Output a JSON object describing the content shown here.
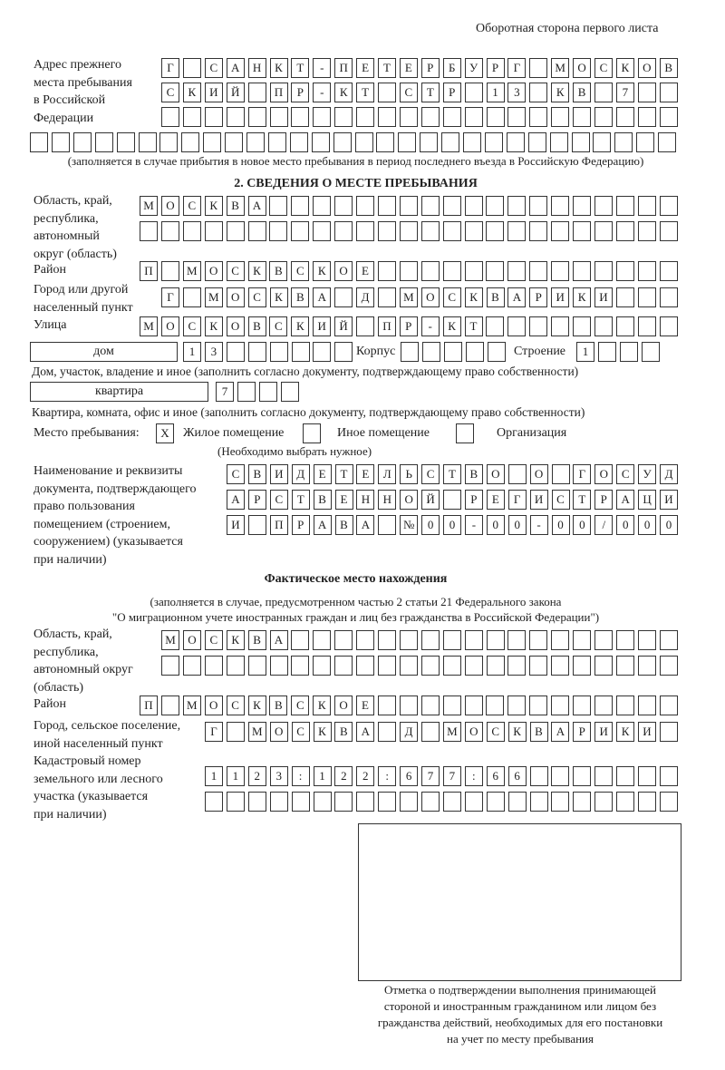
{
  "header": "Оборотная сторона первого листа",
  "prev_address": {
    "label": "Адрес прежнего\nместа пребывания\nв Российской\nФедерации",
    "rows": [
      [
        "Г",
        "",
        "С",
        "А",
        "Н",
        "К",
        "Т",
        "-",
        "П",
        "Е",
        "Т",
        "Е",
        "Р",
        "Б",
        "У",
        "Р",
        "Г",
        "",
        "М",
        "О",
        "С",
        "К",
        "О",
        "В"
      ],
      [
        "С",
        "К",
        "И",
        "Й",
        "",
        "П",
        "Р",
        "-",
        "К",
        "Т",
        "",
        "С",
        "Т",
        "Р",
        "",
        "1",
        "3",
        "",
        "К",
        "В",
        "",
        "7",
        "",
        ""
      ],
      [
        "",
        "",
        "",
        "",
        "",
        "",
        "",
        "",
        "",
        "",
        "",
        "",
        "",
        "",
        "",
        "",
        "",
        "",
        "",
        "",
        "",
        "",
        "",
        ""
      ],
      [
        "",
        "",
        "",
        "",
        "",
        "",
        "",
        "",
        "",
        "",
        "",
        "",
        "",
        "",
        "",
        "",
        "",
        "",
        "",
        "",
        "",
        "",
        "",
        "",
        "",
        "",
        "",
        "",
        "",
        ""
      ]
    ],
    "note": "(заполняется в случае прибытия в новое место пребывания в период последнего въезда в Российскую Федерацию)"
  },
  "section2": {
    "title": "2. СВЕДЕНИЯ О МЕСТЕ ПРЕБЫВАНИЯ",
    "region_label": "Область, край,\nреспублика,\nавтономный\nокруг (область)",
    "region_rows": [
      [
        "М",
        "О",
        "С",
        "К",
        "В",
        "А",
        "",
        "",
        "",
        "",
        "",
        "",
        "",
        "",
        "",
        "",
        "",
        "",
        "",
        "",
        "",
        "",
        "",
        "",
        ""
      ],
      [
        "",
        "",
        "",
        "",
        "",
        "",
        "",
        "",
        "",
        "",
        "",
        "",
        "",
        "",
        "",
        "",
        "",
        "",
        "",
        "",
        "",
        "",
        "",
        "",
        ""
      ]
    ],
    "district_label": "Район",
    "district": [
      "П",
      "",
      "М",
      "О",
      "С",
      "К",
      "В",
      "С",
      "К",
      "О",
      "Е",
      "",
      "",
      "",
      "",
      "",
      "",
      "",
      "",
      "",
      "",
      "",
      "",
      "",
      ""
    ],
    "city_label": "Город или другой\nнаселенный пункт",
    "city": [
      "Г",
      "",
      "М",
      "О",
      "С",
      "К",
      "В",
      "А",
      "",
      "Д",
      "",
      "М",
      "О",
      "С",
      "К",
      "В",
      "А",
      "Р",
      "И",
      "К",
      "И",
      "",
      "",
      ""
    ],
    "street_label": "Улица",
    "street": [
      "М",
      "О",
      "С",
      "К",
      "О",
      "В",
      "С",
      "К",
      "И",
      "Й",
      "",
      "П",
      "Р",
      "-",
      "К",
      "Т",
      "",
      "",
      "",
      "",
      "",
      "",
      "",
      "",
      ""
    ],
    "house_type": "дом",
    "house": [
      "1",
      "3",
      "",
      "",
      "",
      "",
      "",
      ""
    ],
    "korpus_label": "Корпус",
    "korpus": [
      "",
      "",
      "",
      "",
      ""
    ],
    "building_label": "Строение",
    "building": [
      "1",
      "",
      "",
      ""
    ],
    "house_note": "Дом, участок, владение и иное (заполнить согласно документу, подтверждающему право собственности)",
    "flat_type": "квартира",
    "flat": [
      "7",
      "",
      "",
      ""
    ],
    "flat_note": "Квартира, комната, офис и иное (заполнить согласно документу, подтверждающему право собственности)",
    "stay_label": "Место пребывания:",
    "stay_options": [
      {
        "label": "Жилое помещение",
        "mark": "X"
      },
      {
        "label": "Иное помещение",
        "mark": ""
      },
      {
        "label": "Организация",
        "mark": ""
      }
    ],
    "stay_note": "(Необходимо выбрать нужное)",
    "doc_label": "Наименование и реквизиты\nдокумента, подтверждающего\nправо пользования\nпомещением (строением,\nсооружением) (указывается\nпри наличии)",
    "doc_rows": [
      [
        "С",
        "В",
        "И",
        "Д",
        "Е",
        "Т",
        "Е",
        "Л",
        "Ь",
        "С",
        "Т",
        "В",
        "О",
        "",
        "О",
        "",
        "Г",
        "О",
        "С",
        "У",
        "Д"
      ],
      [
        "А",
        "Р",
        "С",
        "Т",
        "В",
        "Е",
        "Н",
        "Н",
        "О",
        "Й",
        "",
        "Р",
        "Е",
        "Г",
        "И",
        "С",
        "Т",
        "Р",
        "А",
        "Ц",
        "И"
      ],
      [
        "И",
        "",
        "П",
        "Р",
        "А",
        "В",
        "А",
        "",
        "№",
        "0",
        "0",
        "-",
        "0",
        "0",
        "-",
        "0",
        "0",
        "/",
        "0",
        "0",
        "0"
      ]
    ]
  },
  "actual": {
    "title": "Фактическое место нахождения",
    "subtitle1": "(заполняется в случае, предусмотренном частью 2 статьи 21 Федерального закона",
    "subtitle2": "\"О миграционном учете иностранных граждан и лиц без гражданства в Российской Федерации\")",
    "region_label": "Область, край,\nреспублика,\nавтономный округ\n(область)",
    "region_rows": [
      [
        "М",
        "О",
        "С",
        "К",
        "В",
        "А",
        "",
        "",
        "",
        "",
        "",
        "",
        "",
        "",
        "",
        "",
        "",
        "",
        "",
        "",
        "",
        "",
        "",
        ""
      ],
      [
        "",
        "",
        "",
        "",
        "",
        "",
        "",
        "",
        "",
        "",
        "",
        "",
        "",
        "",
        "",
        "",
        "",
        "",
        "",
        "",
        "",
        "",
        "",
        ""
      ]
    ],
    "district_label": "Район",
    "district": [
      "П",
      "",
      "М",
      "О",
      "С",
      "К",
      "В",
      "С",
      "К",
      "О",
      "Е",
      "",
      "",
      "",
      "",
      "",
      "",
      "",
      "",
      "",
      "",
      "",
      "",
      "",
      ""
    ],
    "city_label": "Город, сельское поселение,\nиной населенный пункт",
    "city": [
      "Г",
      "",
      "М",
      "О",
      "С",
      "К",
      "В",
      "А",
      "",
      "Д",
      "",
      "М",
      "О",
      "С",
      "К",
      "В",
      "А",
      "Р",
      "И",
      "К",
      "И",
      ""
    ],
    "cadastre_label": "Кадастровый номер\nземельного или лесного\nучастка (указывается\nпри наличии)",
    "cadastre_rows": [
      [
        "1",
        "1",
        "2",
        "3",
        ":",
        "1",
        "2",
        "2",
        ":",
        "6",
        "7",
        "7",
        ":",
        "6",
        "6",
        "",
        "",
        "",
        "",
        "",
        "",
        ""
      ],
      [
        "",
        "",
        "",
        "",
        "",
        "",
        "",
        "",
        "",
        "",
        "",
        "",
        "",
        "",
        "",
        "",
        "",
        "",
        "",
        "",
        "",
        ""
      ]
    ]
  },
  "stamp_caption": "Отметка о подтверждении выполнения принимающей\nстороной и иностранным гражданином или лицом без\nгражданства действий, необходимых для его постановки\nна учет по месту пребывания"
}
